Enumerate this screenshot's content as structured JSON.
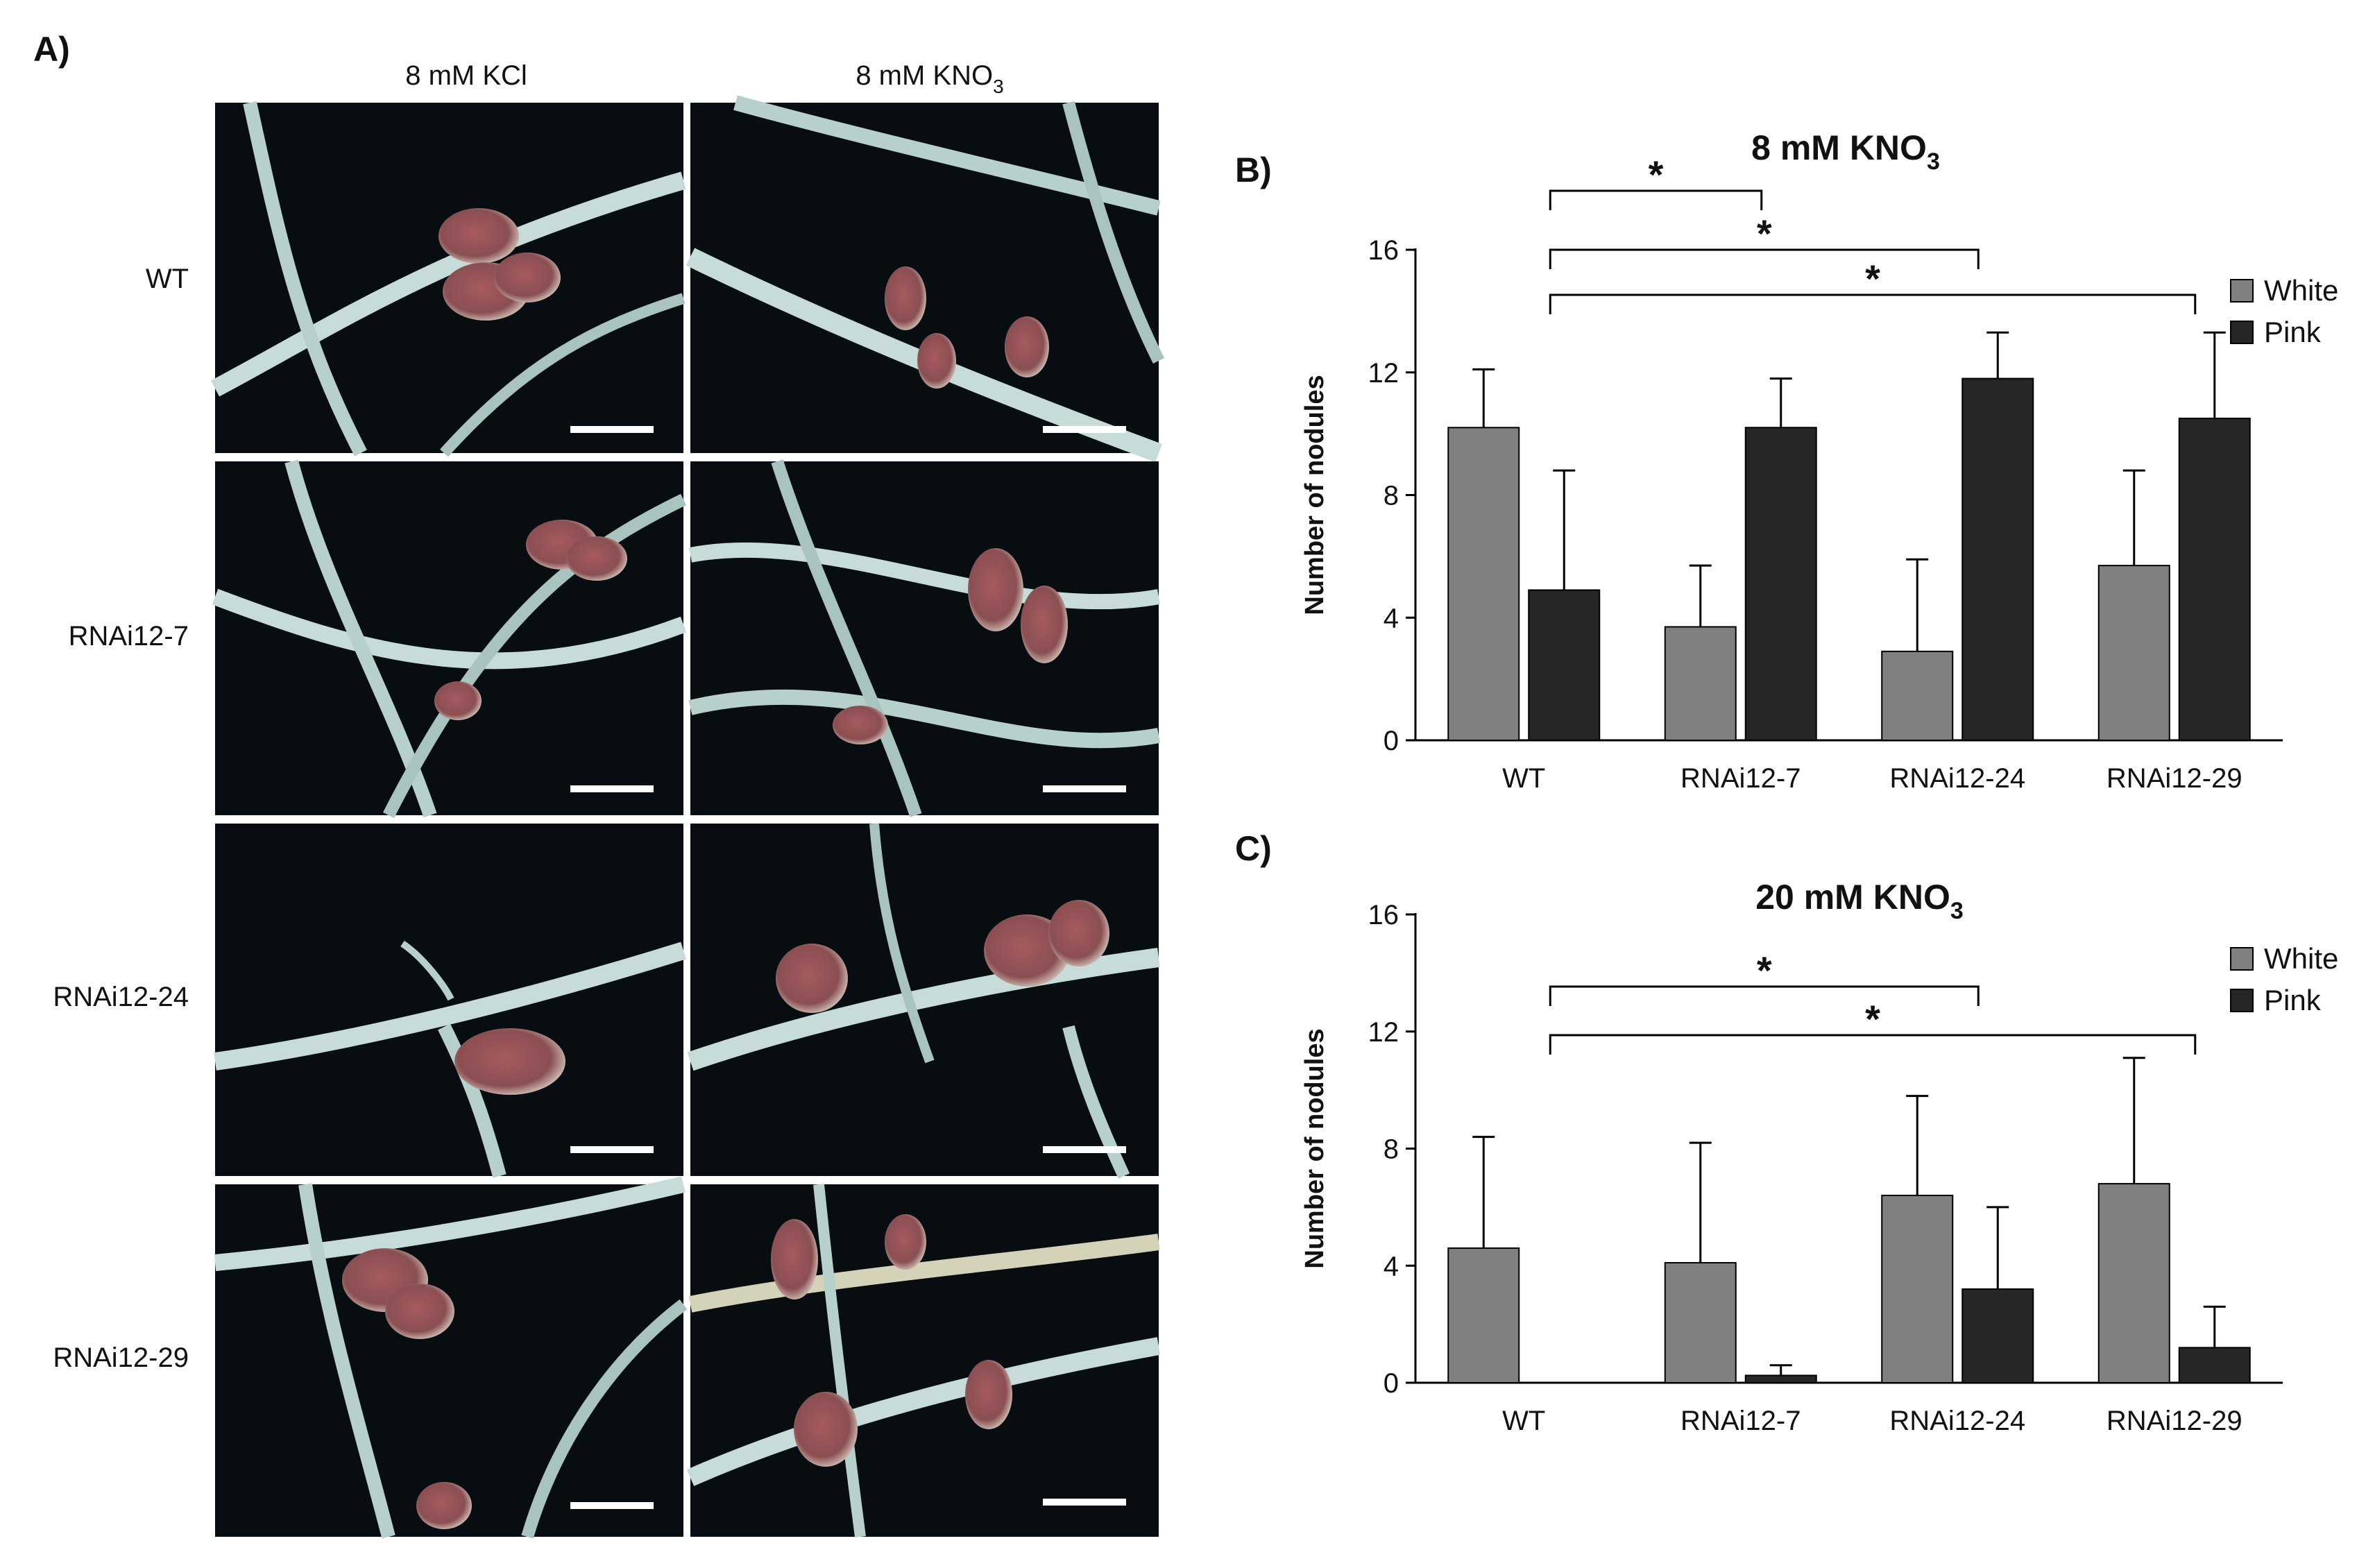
{
  "panel_a": {
    "label": "A)",
    "columns": [
      {
        "pre": "8 mM KCl",
        "sub": ""
      },
      {
        "pre": "8 mM KNO",
        "sub": "3"
      }
    ],
    "rows": [
      "WT",
      "RNAi12-7",
      "RNAi12-24",
      "RNAi12-29"
    ]
  },
  "chart_data": [
    {
      "type": "bar",
      "panel_label": "B)",
      "title": "8 mM KNO",
      "title_sub": "3",
      "ylabel": "Number of nodules",
      "xlabel": "",
      "categories": [
        "WT",
        "RNAi12-7",
        "RNAi12-24",
        "RNAi12-29"
      ],
      "ylim": [
        0,
        16
      ],
      "yticks": [
        0,
        4,
        8,
        12,
        16
      ],
      "legend_position": "right",
      "series": [
        {
          "name": "White",
          "color": "#808080",
          "values": [
            10.2,
            3.7,
            2.9,
            5.7
          ],
          "errors": [
            1.9,
            2.0,
            3.0,
            3.1
          ]
        },
        {
          "name": "Pink",
          "color": "#262626",
          "values": [
            4.9,
            10.2,
            11.8,
            10.5
          ],
          "errors": [
            3.9,
            1.6,
            1.5,
            2.8
          ]
        }
      ],
      "significance": [
        {
          "from": "WT",
          "to": "RNAi12-7",
          "label": "*"
        },
        {
          "from": "WT",
          "to": "RNAi12-24",
          "label": "*"
        },
        {
          "from": "WT",
          "to": "RNAi12-29",
          "label": "*"
        }
      ]
    },
    {
      "type": "bar",
      "panel_label": "C)",
      "title": "20 mM KNO",
      "title_sub": "3",
      "ylabel": "Number of nodules",
      "xlabel": "",
      "categories": [
        "WT",
        "RNAi12-7",
        "RNAi12-24",
        "RNAi12-29"
      ],
      "ylim": [
        0,
        16
      ],
      "yticks": [
        0,
        4,
        8,
        12,
        16
      ],
      "legend_position": "right",
      "series": [
        {
          "name": "White",
          "color": "#808080",
          "values": [
            4.6,
            4.1,
            6.4,
            6.8
          ],
          "errors": [
            3.8,
            4.1,
            3.4,
            4.3
          ]
        },
        {
          "name": "Pink",
          "color": "#262626",
          "values": [
            0,
            0.25,
            3.2,
            1.2
          ],
          "errors": [
            0,
            0.35,
            2.8,
            1.4
          ]
        }
      ],
      "significance": [
        {
          "from": "WT",
          "to": "RNAi12-24",
          "label": "*"
        },
        {
          "from": "WT",
          "to": "RNAi12-29",
          "label": "*"
        }
      ]
    }
  ]
}
